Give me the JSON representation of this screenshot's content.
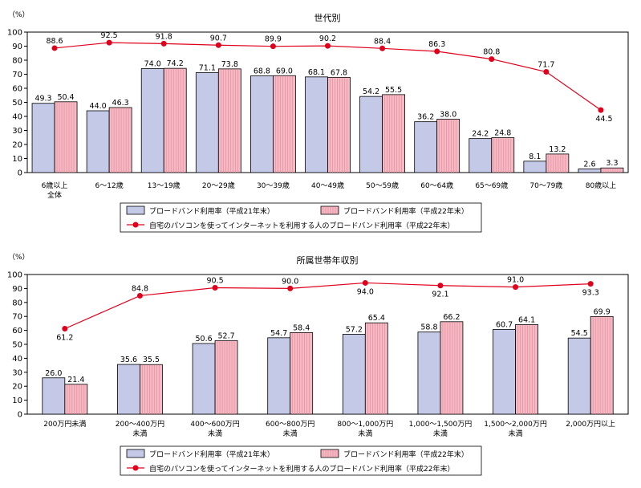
{
  "chart_data": [
    {
      "type": "bar",
      "title": "世代別",
      "ylabel": "（%）",
      "ylim": [
        0,
        100
      ],
      "yticks": [
        0,
        10,
        20,
        30,
        40,
        50,
        60,
        70,
        80,
        90,
        100
      ],
      "categories": [
        "6歳以上\n全体",
        "6〜12歳",
        "13〜19歳",
        "20〜29歳",
        "30〜39歳",
        "40〜49歳",
        "50〜59歳",
        "60〜64歳",
        "65〜69歳",
        "70〜79歳",
        "80歳以上"
      ],
      "series": [
        {
          "name": "ブロードバンド利用率（平成21年末）",
          "kind": "bar",
          "color": "#c3c9e6",
          "values": [
            49.3,
            44.0,
            74.0,
            71.1,
            68.8,
            68.1,
            54.2,
            36.2,
            24.2,
            8.1,
            2.6
          ]
        },
        {
          "name": "ブロードバンド利用率（平成22年末）",
          "kind": "bar",
          "color": "#f4b9c3",
          "values": [
            50.4,
            46.3,
            74.2,
            73.8,
            69.0,
            67.8,
            55.5,
            38.0,
            24.8,
            13.2,
            3.3
          ]
        },
        {
          "name": "自宅のパソコンを使ってインターネットを利用する人のブロードバンド利用率（平成22年末）",
          "kind": "line",
          "color": "#e0001b",
          "values": [
            88.6,
            92.5,
            91.8,
            90.7,
            89.9,
            90.2,
            88.4,
            86.3,
            80.8,
            71.7,
            44.5
          ]
        }
      ],
      "legend": "bottom"
    },
    {
      "type": "bar",
      "title": "所属世帯年収別",
      "ylabel": "（%）",
      "ylim": [
        0,
        100
      ],
      "yticks": [
        0,
        10,
        20,
        30,
        40,
        50,
        60,
        70,
        80,
        90,
        100
      ],
      "categories": [
        "200万円未満",
        "200〜400万円\n未満",
        "400〜600万円\n未満",
        "600〜800万円\n未満",
        "800〜1,000万円\n未満",
        "1,000〜1,500万円\n未満",
        "1,500〜2,000万円\n未満",
        "2,000万円以上"
      ],
      "series": [
        {
          "name": "ブロードバンド利用率（平成21年末）",
          "kind": "bar",
          "color": "#c3c9e6",
          "values": [
            26.0,
            35.6,
            50.6,
            54.7,
            57.2,
            58.8,
            60.7,
            54.5
          ]
        },
        {
          "name": "ブロードバンド利用率（平成22年末）",
          "kind": "bar",
          "color": "#f4b9c3",
          "values": [
            21.4,
            35.5,
            52.7,
            58.4,
            65.4,
            66.2,
            64.1,
            69.9
          ]
        },
        {
          "name": "自宅のパソコンを使ってインターネットを利用する人のブロードバンド利用率（平成22年末）",
          "kind": "line",
          "color": "#e0001b",
          "values": [
            61.2,
            84.8,
            90.5,
            90.0,
            94.0,
            92.1,
            91.0,
            93.3
          ]
        }
      ],
      "legend": "bottom"
    }
  ]
}
